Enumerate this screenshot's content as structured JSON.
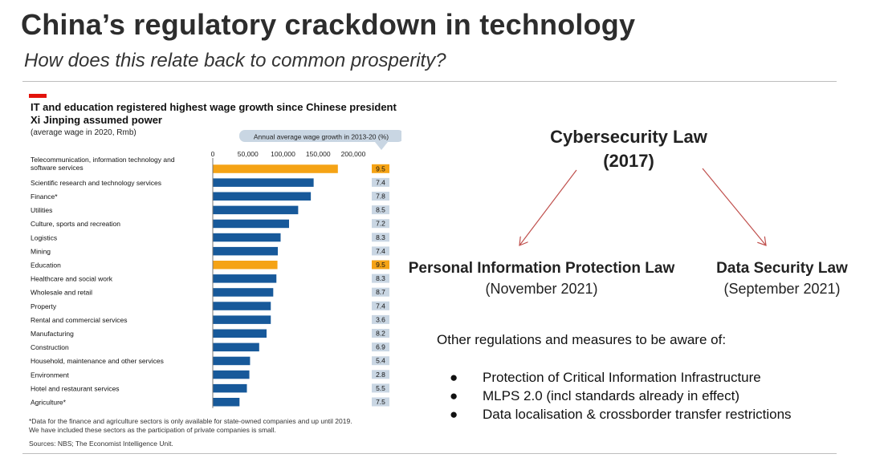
{
  "slide": {
    "title": "China’s regulatory crackdown in technology",
    "subtitle": "How does this relate back to common prosperity?"
  },
  "chart_data": {
    "type": "bar",
    "title": "IT and education registered highest wage growth since Chinese president Xi Jinping assumed power",
    "subtitle": "(average wage in 2020, Rmb)",
    "growth_header": "Annual average wage growth in 2013-20 (%)",
    "xlim": [
      0,
      200000
    ],
    "ticks": [
      0,
      50000,
      100000,
      150000,
      200000
    ],
    "tick_labels": [
      "0",
      "50,000",
      "100,000",
      "150,000",
      "200,000"
    ],
    "categories": [
      "Telecommunication, information technology and software services",
      "Scientific research and technology services",
      "Finance*",
      "Utilities",
      "Culture, sports and recreation",
      "Logistics",
      "Mining",
      "Education",
      "Healthcare and social work",
      "Wholesale and retail",
      "Property",
      "Rental and commercial services",
      "Manufacturing",
      "Construction",
      "Household, maintenance and other services",
      "Environment",
      "Hotel and restaurant services",
      "Agriculture*"
    ],
    "values": [
      177500,
      143000,
      139000,
      121000,
      108000,
      96000,
      92000,
      91500,
      90000,
      85500,
      82000,
      82000,
      76000,
      65500,
      52500,
      51500,
      48000,
      37500
    ],
    "growth": [
      "9.5",
      "7.4",
      "7.8",
      "8.5",
      "7.2",
      "8.3",
      "7.4",
      "9.5",
      "8.3",
      "8.7",
      "7.4",
      "3.6",
      "8.2",
      "6.9",
      "5.4",
      "2.8",
      "5.5",
      "7.5"
    ],
    "highlighted": [
      0,
      7
    ],
    "colors": {
      "bar": "#17599a",
      "highlight": "#f5a315",
      "growth_bg": "#c9d6e3",
      "growth_highlight_bg": "#f5a315",
      "header_bg": "#c9d6e3"
    },
    "footnote_lines": [
      "*Data for the finance and agriculture sectors is only available for state-owned companies and up until 2019.",
      "We have included these sectors as the participation of private companies is small."
    ],
    "source": "Sources: NBS; The Economist Intelligence Unit."
  },
  "laws": {
    "central_name": "Cybersecurity Law",
    "central_year": "(2017)",
    "left_name": "Personal Information Protection Law",
    "left_date": "(November 2021)",
    "right_name": "Data Security Law",
    "right_date": "(September 2021)",
    "arrow_color": "#c0504d"
  },
  "other": {
    "intro": "Other regulations and measures to be aware of:",
    "bullet_glyph": "●",
    "items": [
      "Protection of Critical Information Infrastructure",
      "MLPS 2.0 (incl standards already in effect)",
      "Data localisation & crossborder transfer restrictions"
    ]
  }
}
